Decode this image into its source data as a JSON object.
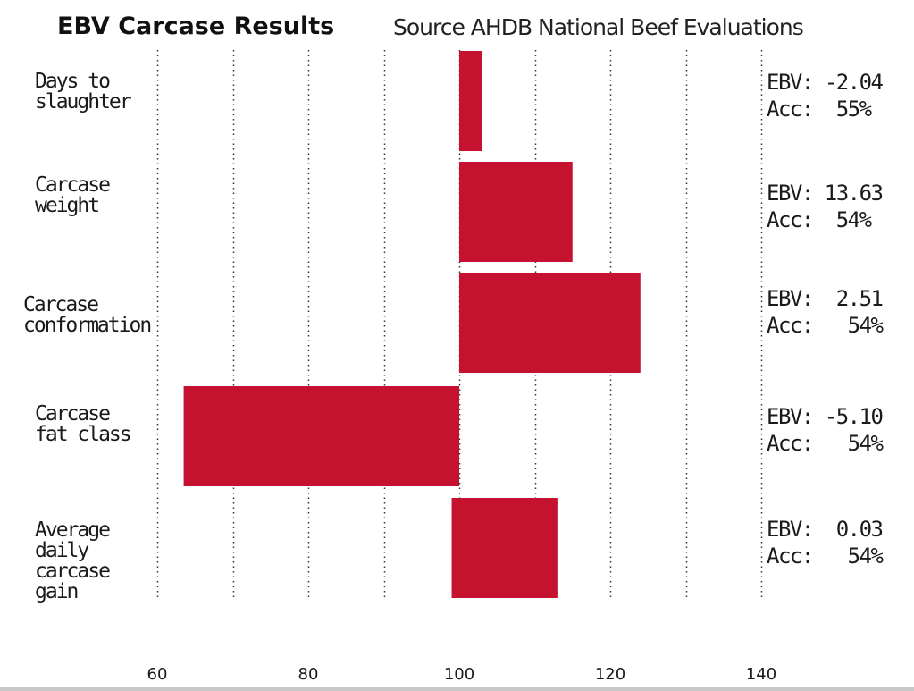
{
  "chart_data": {
    "type": "bar",
    "title": "EBV Carcase Results",
    "subtitle": "Source AHDB National Beef Evaluations",
    "baseline": 100,
    "xlim": [
      58,
      142
    ],
    "x_ticks": [
      60,
      80,
      100,
      120,
      140
    ],
    "x_tick_labels": [
      "60",
      "80",
      "100",
      "120",
      "140"
    ],
    "grid": "vertical dotted",
    "bar_color": "#c4122f",
    "categories": [
      "Days to\nslaughter",
      "Carcase\nweight",
      "Carcase\nconformation",
      "Carcase\nfat class",
      "Average\ndaily\ncarcase\ngain"
    ],
    "bars": [
      {
        "from": 100,
        "to": 103
      },
      {
        "from": 100,
        "to": 115
      },
      {
        "from": 100,
        "to": 124
      },
      {
        "from": 63.5,
        "to": 100
      },
      {
        "from": 99,
        "to": 113
      }
    ],
    "ebv_labels": [
      "EBV: -2.04",
      "EBV: 13.63",
      "EBV:  2.51",
      "EBV: -5.10",
      "EBV:  0.03"
    ],
    "acc_labels": [
      "Acc:  55%",
      "Acc:  54%",
      "Acc:   54%",
      "Acc:   54%",
      "Acc:   54%"
    ]
  }
}
